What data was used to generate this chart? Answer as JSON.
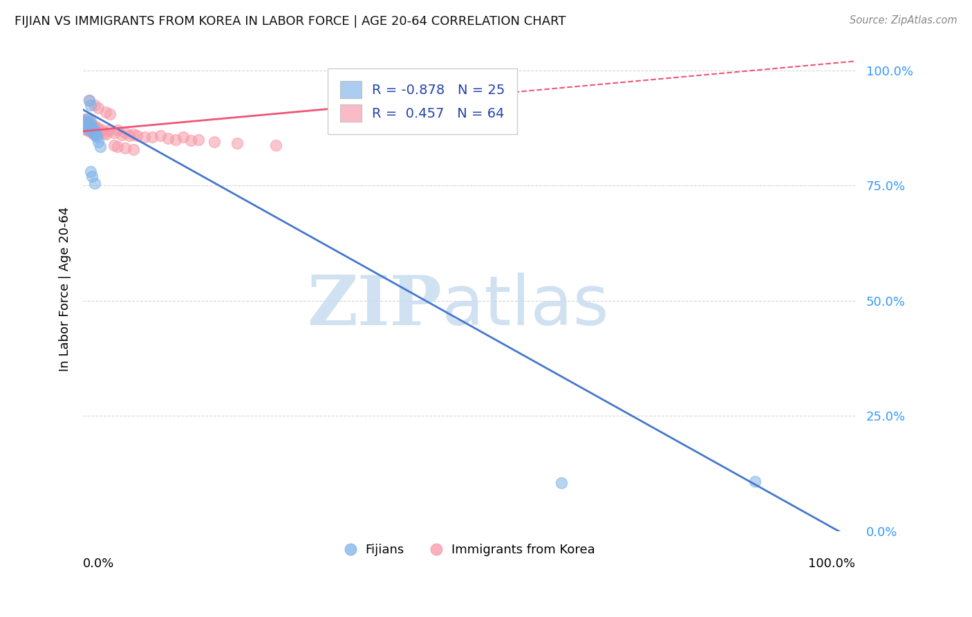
{
  "title": "FIJIAN VS IMMIGRANTS FROM KOREA IN LABOR FORCE | AGE 20-64 CORRELATION CHART",
  "source": "Source: ZipAtlas.com",
  "ylabel": "In Labor Force | Age 20-64",
  "fijian_color": "#7EB3E8",
  "korea_color": "#F799A8",
  "fijian_line_color": "#4477CC",
  "korea_line_color": "#EE5577",
  "legend_fijian_R": "-0.878",
  "legend_fijian_N": "25",
  "legend_korea_R": "0.457",
  "legend_korea_N": "64",
  "fijian_x": [
    0.003,
    0.004,
    0.005,
    0.006,
    0.007,
    0.008,
    0.009,
    0.01,
    0.011,
    0.012,
    0.013,
    0.014,
    0.015,
    0.016,
    0.017,
    0.018,
    0.02,
    0.022,
    0.01,
    0.012,
    0.015,
    0.008,
    0.01,
    0.62,
    0.87
  ],
  "fijian_y": [
    0.885,
    0.89,
    0.895,
    0.875,
    0.88,
    0.87,
    0.882,
    0.89,
    0.878,
    0.872,
    0.876,
    0.862,
    0.868,
    0.858,
    0.862,
    0.855,
    0.845,
    0.835,
    0.78,
    0.77,
    0.755,
    0.935,
    0.925,
    0.105,
    0.108
  ],
  "korea_x": [
    0.001,
    0.002,
    0.002,
    0.003,
    0.003,
    0.004,
    0.004,
    0.005,
    0.005,
    0.006,
    0.006,
    0.007,
    0.007,
    0.008,
    0.008,
    0.009,
    0.009,
    0.01,
    0.01,
    0.011,
    0.011,
    0.012,
    0.012,
    0.013,
    0.014,
    0.015,
    0.015,
    0.016,
    0.017,
    0.018,
    0.02,
    0.022,
    0.025,
    0.028,
    0.03,
    0.035,
    0.04,
    0.045,
    0.05,
    0.055,
    0.06,
    0.065,
    0.07,
    0.08,
    0.09,
    0.1,
    0.11,
    0.12,
    0.13,
    0.14,
    0.15,
    0.17,
    0.2,
    0.25,
    0.008,
    0.015,
    0.02,
    0.03,
    0.035,
    0.04,
    0.045,
    0.43,
    0.055,
    0.065
  ],
  "korea_y": [
    0.882,
    0.89,
    0.878,
    0.895,
    0.872,
    0.888,
    0.875,
    0.882,
    0.87,
    0.89,
    0.876,
    0.885,
    0.872,
    0.888,
    0.875,
    0.88,
    0.868,
    0.885,
    0.872,
    0.882,
    0.87,
    0.878,
    0.865,
    0.878,
    0.872,
    0.88,
    0.868,
    0.875,
    0.87,
    0.865,
    0.875,
    0.868,
    0.87,
    0.865,
    0.862,
    0.87,
    0.865,
    0.87,
    0.86,
    0.865,
    0.858,
    0.862,
    0.858,
    0.855,
    0.855,
    0.858,
    0.852,
    0.85,
    0.855,
    0.848,
    0.85,
    0.845,
    0.842,
    0.838,
    0.935,
    0.925,
    0.918,
    0.91,
    0.905,
    0.838,
    0.835,
    0.9,
    0.832,
    0.828
  ],
  "fijian_line_x0": 0.0,
  "fijian_line_y0": 0.915,
  "fijian_line_x1": 1.0,
  "fijian_line_y1": -0.02,
  "korea_line_x0": 0.0,
  "korea_line_y0": 0.868,
  "korea_line_x1": 1.0,
  "korea_line_y1": 1.02,
  "xlim": [
    0.0,
    1.0
  ],
  "ylim": [
    0.0,
    1.05
  ],
  "ytick_positions": [
    0.0,
    0.25,
    0.5,
    0.75,
    1.0
  ],
  "ytick_labels": [
    "0.0%",
    "25.0%",
    "50.0%",
    "75.0%",
    "100.0%"
  ],
  "xtick_positions": [
    0.0,
    0.25,
    0.5,
    0.75,
    1.0
  ],
  "background_color": "#FFFFFF",
  "grid_color": "#CCCCCC"
}
